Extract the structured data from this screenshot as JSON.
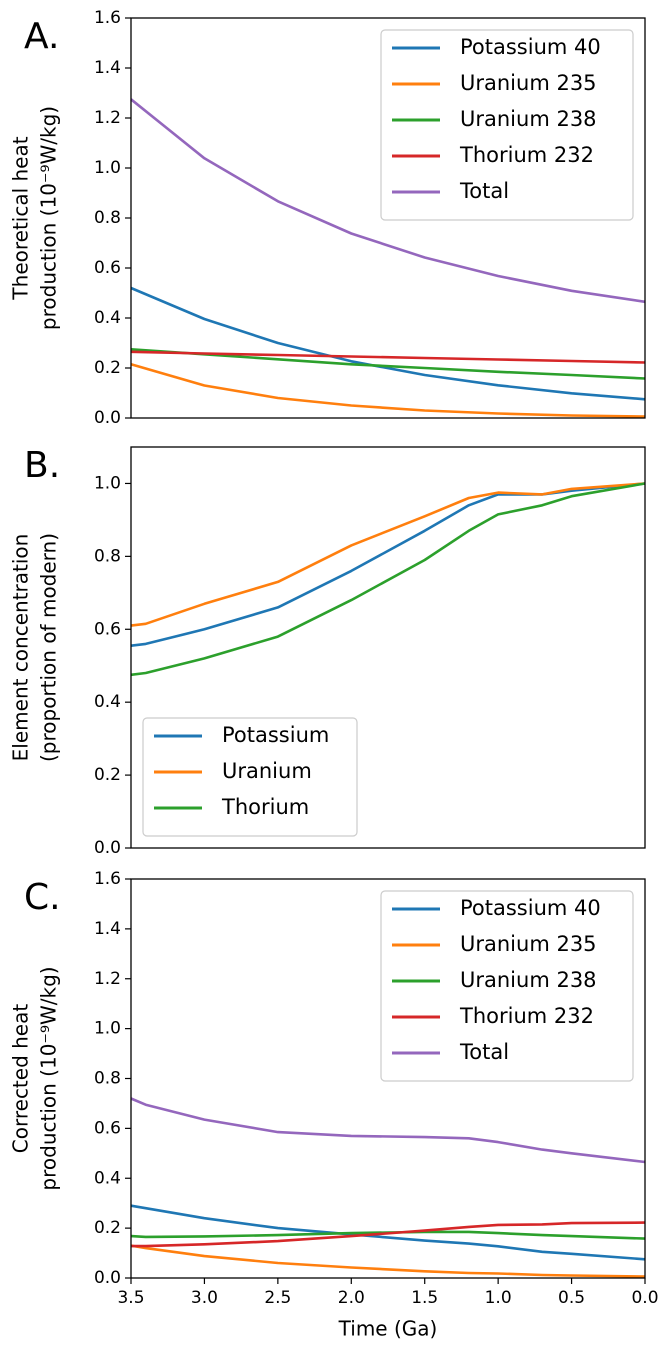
{
  "chart_data": [
    {
      "type": "line",
      "panel_label": "A.",
      "ylabel": [
        "Theoretical heat",
        "production (10⁻⁹W/kg)"
      ],
      "x": [
        3.5,
        3.0,
        2.5,
        2.0,
        1.5,
        1.0,
        0.5,
        0.0
      ],
      "xlim": [
        3.5,
        0.0
      ],
      "ylim": [
        0.0,
        1.6
      ],
      "yticks": [
        {
          "value": 0,
          "label": "0.0"
        },
        0.2,
        0.4,
        0.6,
        0.8,
        {
          "value": 1,
          "label": "1.0"
        },
        1.2,
        1.4,
        1.6
      ],
      "legend": "upper right",
      "series": [
        {
          "name": "Potassium 40",
          "color": "#1f77b4",
          "values": [
            0.52,
            0.396,
            0.3,
            0.227,
            0.172,
            0.131,
            0.099,
            0.075
          ]
        },
        {
          "name": "Uranium 235",
          "color": "#ff7f0e",
          "values": [
            0.215,
            0.13,
            0.08,
            0.05,
            0.03,
            0.018,
            0.01,
            0.006
          ]
        },
        {
          "name": "Uranium 238",
          "color": "#2ca02c",
          "values": [
            0.275,
            0.255,
            0.235,
            0.215,
            0.2,
            0.185,
            0.172,
            0.158
          ]
        },
        {
          "name": "Thorium 232",
          "color": "#d62728",
          "values": [
            0.265,
            0.258,
            0.252,
            0.246,
            0.24,
            0.234,
            0.228,
            0.222
          ]
        },
        {
          "name": "Total",
          "color": "#9467bd",
          "values": [
            1.275,
            1.039,
            0.867,
            0.738,
            0.642,
            0.568,
            0.509,
            0.465
          ]
        }
      ]
    },
    {
      "type": "line",
      "panel_label": "B.",
      "ylabel": [
        "Element concentration",
        "(proportion of modern)"
      ],
      "x": [
        3.5,
        3.4,
        3.0,
        2.5,
        2.0,
        1.5,
        1.2,
        1.0,
        0.7,
        0.5,
        0.0
      ],
      "xlim": [
        3.5,
        0.0
      ],
      "ylim": [
        0.0,
        1.1
      ],
      "yticks": [
        {
          "value": 0,
          "label": "0.0"
        },
        0.2,
        0.4,
        0.6,
        0.8,
        {
          "value": 1,
          "label": "1.0"
        }
      ],
      "legend": "lower left",
      "series": [
        {
          "name": "Potassium",
          "color": "#1f77b4",
          "values": [
            0.555,
            0.56,
            0.6,
            0.66,
            0.76,
            0.87,
            0.94,
            0.97,
            0.97,
            0.98,
            1.0
          ]
        },
        {
          "name": "Uranium",
          "color": "#ff7f0e",
          "values": [
            0.61,
            0.615,
            0.67,
            0.73,
            0.83,
            0.91,
            0.96,
            0.975,
            0.97,
            0.985,
            1.0
          ]
        },
        {
          "name": "Thorium",
          "color": "#2ca02c",
          "values": [
            0.475,
            0.48,
            0.52,
            0.58,
            0.68,
            0.79,
            0.87,
            0.915,
            0.94,
            0.965,
            1.0
          ]
        }
      ]
    },
    {
      "type": "line",
      "panel_label": "C.",
      "ylabel": [
        "Corrected heat",
        "production (10⁻⁹W/kg)"
      ],
      "xlabel": "Time (Ga)",
      "x": [
        3.5,
        3.4,
        3.0,
        2.5,
        2.0,
        1.5,
        1.2,
        1.0,
        0.7,
        0.5,
        0.0
      ],
      "xlim": [
        3.5,
        0.0
      ],
      "xticks": [
        3.5,
        {
          "value": 3,
          "label": "3.0"
        },
        2.5,
        {
          "value": 2,
          "label": "2.0"
        },
        1.5,
        {
          "value": 1,
          "label": "1.0"
        },
        0.5,
        {
          "value": 0,
          "label": "0.0"
        }
      ],
      "ylim": [
        0.0,
        1.6
      ],
      "yticks": [
        {
          "value": 0,
          "label": "0.0"
        },
        0.2,
        0.4,
        0.6,
        0.8,
        {
          "value": 1,
          "label": "1.0"
        },
        1.2,
        1.4,
        1.6
      ],
      "legend": "upper right",
      "series": [
        {
          "name": "Potassium 40",
          "color": "#1f77b4",
          "values": [
            0.29,
            0.28,
            0.24,
            0.2,
            0.175,
            0.15,
            0.138,
            0.127,
            0.105,
            0.097,
            0.075
          ]
        },
        {
          "name": "Uranium 235",
          "color": "#ff7f0e",
          "values": [
            0.13,
            0.12,
            0.088,
            0.06,
            0.042,
            0.027,
            0.02,
            0.018,
            0.012,
            0.01,
            0.006
          ]
        },
        {
          "name": "Uranium 238",
          "color": "#2ca02c",
          "values": [
            0.168,
            0.165,
            0.167,
            0.172,
            0.18,
            0.185,
            0.185,
            0.18,
            0.172,
            0.168,
            0.158
          ]
        },
        {
          "name": "Thorium 232",
          "color": "#d62728",
          "values": [
            0.128,
            0.128,
            0.135,
            0.148,
            0.168,
            0.19,
            0.205,
            0.213,
            0.215,
            0.22,
            0.222
          ]
        },
        {
          "name": "Total",
          "color": "#9467bd",
          "values": [
            0.72,
            0.695,
            0.635,
            0.585,
            0.57,
            0.565,
            0.56,
            0.545,
            0.515,
            0.5,
            0.465
          ]
        }
      ]
    }
  ]
}
